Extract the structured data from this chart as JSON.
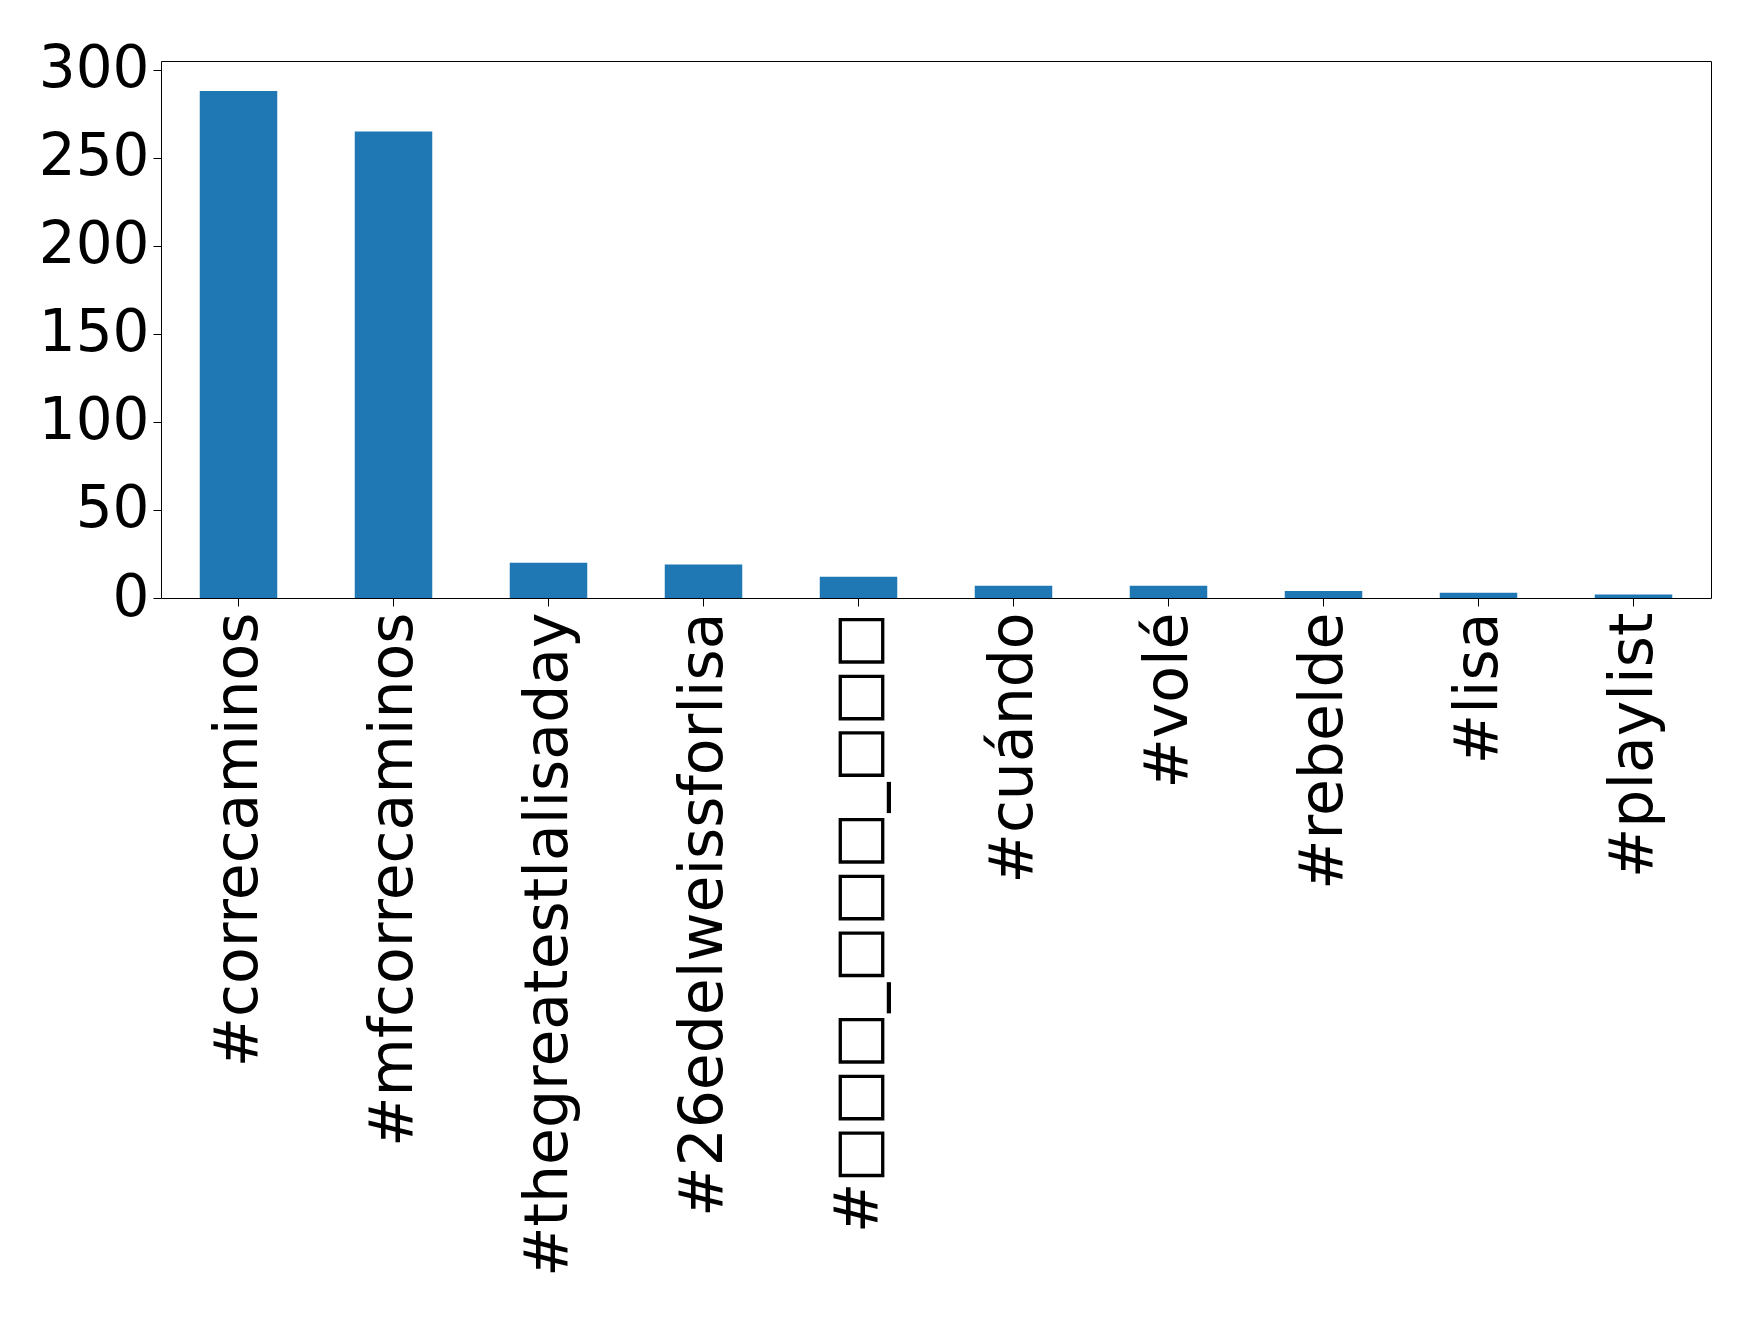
{
  "chart_data": {
    "type": "bar",
    "categories": [
      "#correcaminos",
      "#mfcorrecaminos",
      "#thegreatestlalisaday",
      "#26edelweissforlisa",
      "#□□□_□□□_□□□",
      "#cuándo",
      "#volé",
      "#rebelde",
      "#lisa",
      "#playlist"
    ],
    "values": [
      288,
      265,
      20,
      19,
      12,
      7,
      7,
      4,
      3,
      2
    ],
    "color": "#1f77b4",
    "ylim": [
      0,
      305
    ],
    "yticks": [
      0,
      50,
      100,
      150,
      200,
      250,
      300
    ],
    "grid": false
  }
}
